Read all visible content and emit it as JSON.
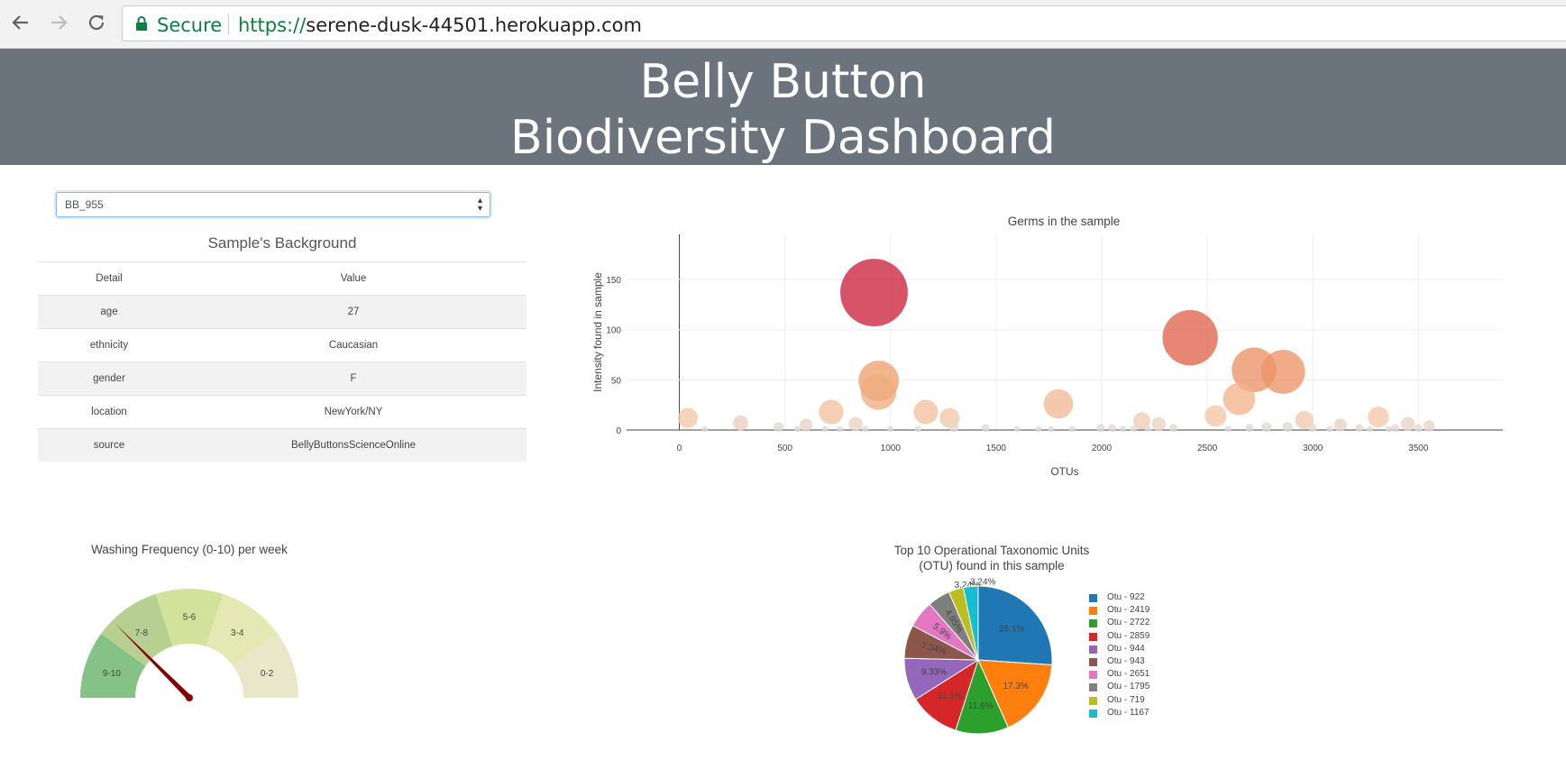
{
  "browser": {
    "secure_label": "Secure",
    "url_scheme": "https://",
    "url_host": "serene-dusk-44501.herokuapp.com",
    "back_icon": "back-arrow-icon",
    "forward_icon": "forward-arrow-icon",
    "reload_icon": "reload-icon",
    "lock_icon": "lock-icon"
  },
  "header": {
    "line1": "Belly Button",
    "line2": "Biodiversity Dashboard",
    "bg_color": "#6b737c"
  },
  "sample_select": {
    "selected": "BB_955"
  },
  "metadata": {
    "title": "Sample's Background",
    "headers": [
      "Detail",
      "Value"
    ],
    "rows": [
      [
        "age",
        "27"
      ],
      [
        "ethnicity",
        "Caucasian"
      ],
      [
        "gender",
        "F"
      ],
      [
        "location",
        "NewYork/NY"
      ],
      [
        "source",
        "BellyButtonsScienceOnline"
      ]
    ]
  },
  "chart_data": [
    {
      "type": "scatter",
      "subtype": "bubble",
      "title": "Germs in the sample",
      "xlabel": "OTUs",
      "ylabel": "Intensity found in sample",
      "xlim": [
        -250,
        3900
      ],
      "ylim": [
        0,
        195
      ],
      "xticks": [
        0,
        500,
        1000,
        1500,
        2000,
        2500,
        3000,
        3500
      ],
      "yticks": [
        0,
        50,
        100,
        150
      ],
      "grid": true,
      "points": [
        {
          "x": 922,
          "y": 137
        },
        {
          "x": 2419,
          "y": 92
        },
        {
          "x": 2722,
          "y": 60
        },
        {
          "x": 2859,
          "y": 58
        },
        {
          "x": 944,
          "y": 49
        },
        {
          "x": 943,
          "y": 38
        },
        {
          "x": 2651,
          "y": 31
        },
        {
          "x": 1795,
          "y": 26
        },
        {
          "x": 719,
          "y": 18
        },
        {
          "x": 1167,
          "y": 18
        },
        {
          "x": 2540,
          "y": 14
        },
        {
          "x": 1280,
          "y": 12
        },
        {
          "x": 3310,
          "y": 13
        },
        {
          "x": 40,
          "y": 12
        },
        {
          "x": 2960,
          "y": 10
        },
        {
          "x": 2190,
          "y": 9
        },
        {
          "x": 290,
          "y": 7
        },
        {
          "x": 835,
          "y": 6
        },
        {
          "x": 2270,
          "y": 6
        },
        {
          "x": 3450,
          "y": 6
        },
        {
          "x": 3130,
          "y": 5
        },
        {
          "x": 600,
          "y": 5
        },
        {
          "x": 3550,
          "y": 4
        },
        {
          "x": 2780,
          "y": 3
        },
        {
          "x": 470,
          "y": 3
        },
        {
          "x": 1300,
          "y": 3
        },
        {
          "x": 2880,
          "y": 3
        },
        {
          "x": 1450,
          "y": 2
        },
        {
          "x": 3390,
          "y": 2
        },
        {
          "x": 1995,
          "y": 2
        },
        {
          "x": 2050,
          "y": 2
        },
        {
          "x": 2340,
          "y": 2
        },
        {
          "x": 2700,
          "y": 2
        },
        {
          "x": 3000,
          "y": 2
        },
        {
          "x": 3220,
          "y": 2
        },
        {
          "x": 3500,
          "y": 2
        },
        {
          "x": 1600,
          "y": 1
        },
        {
          "x": 1700,
          "y": 1
        },
        {
          "x": 1760,
          "y": 1
        },
        {
          "x": 1860,
          "y": 1
        },
        {
          "x": 2100,
          "y": 1
        },
        {
          "x": 2220,
          "y": 1
        },
        {
          "x": 2600,
          "y": 1
        },
        {
          "x": 3080,
          "y": 1
        },
        {
          "x": 3270,
          "y": 1
        },
        {
          "x": 3360,
          "y": 1
        },
        {
          "x": 120,
          "y": 1
        },
        {
          "x": 560,
          "y": 1
        },
        {
          "x": 690,
          "y": 1
        },
        {
          "x": 760,
          "y": 1
        },
        {
          "x": 880,
          "y": 1
        },
        {
          "x": 1000,
          "y": 1
        },
        {
          "x": 1130,
          "y": 1
        },
        {
          "x": 2150,
          "y": 1
        }
      ]
    },
    {
      "type": "pie",
      "title": "Top 10 Operational Taxonomic Units\n(OTU) found in this sample",
      "legend": "right",
      "slices": [
        {
          "label": "Otu - 922",
          "value": 26.1,
          "text": "26.1%",
          "color": "#1f77b4"
        },
        {
          "label": "Otu - 2419",
          "value": 17.3,
          "text": "17.3%",
          "color": "#ff7f0e"
        },
        {
          "label": "Otu - 2722",
          "value": 11.6,
          "text": "11.6%",
          "color": "#2ca02c"
        },
        {
          "label": "Otu - 2859",
          "value": 11.1,
          "text": "11.1%",
          "color": "#d62728"
        },
        {
          "label": "Otu - 944",
          "value": 9.33,
          "text": "9.33%",
          "color": "#9467bd"
        },
        {
          "label": "Otu - 943",
          "value": 7.34,
          "text": "7.34%",
          "color": "#8c564b"
        },
        {
          "label": "Otu - 2651",
          "value": 5.9,
          "text": "5.9%",
          "color": "#e377c2"
        },
        {
          "label": "Otu - 1795",
          "value": 4.95,
          "text": "4.95%",
          "color": "#7f7f7f"
        },
        {
          "label": "Otu - 719",
          "value": 3.24,
          "text": "3.24%",
          "color": "#bcbd22"
        },
        {
          "label": "Otu - 1167",
          "value": 3.24,
          "text": "3.24%",
          "color": "#17becf"
        }
      ]
    },
    {
      "type": "gauge",
      "title": "Washing Frequency (0-10) per week",
      "value": 7.5,
      "sections": [
        {
          "label": "9-10",
          "color": "#84c285"
        },
        {
          "label": "7-8",
          "color": "#b7cf90"
        },
        {
          "label": "5-6",
          "color": "#d3e29a"
        },
        {
          "label": "3-4",
          "color": "#e4e8b2"
        },
        {
          "label": "0-2",
          "color": "#e9e6ca"
        }
      ],
      "needle_color": "#850000"
    }
  ]
}
